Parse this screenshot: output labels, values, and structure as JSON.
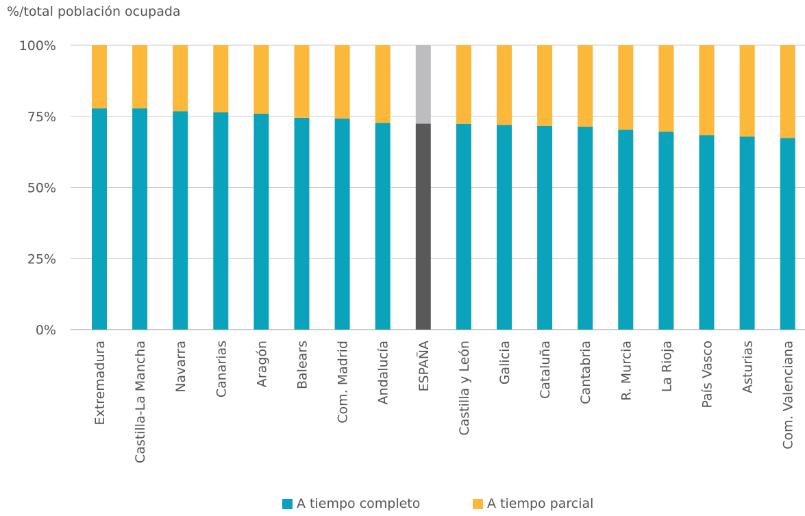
{
  "chart_data": {
    "type": "bar",
    "stacked": true,
    "ylabel": "%/total población ocupada",
    "ylim": [
      0,
      100
    ],
    "yticks": [
      "0%",
      "25%",
      "50%",
      "75%",
      "100%"
    ],
    "grid": true,
    "legend_position": "bottom",
    "categories": [
      "Extremadura",
      "Castilla-La Mancha",
      "Navarra",
      "Canarias",
      "Aragón",
      "Balears",
      "Com. Madrid",
      "Andalucía",
      "ESPAÑA",
      "Castilla y León",
      "Galicia",
      "Cataluña",
      "Cantabria",
      "R. Murcia",
      "La Rioja",
      "País Vasco",
      "Asturias",
      "Com. Valenciana"
    ],
    "highlight_category": "ESPAÑA",
    "series": [
      {
        "name": "A tiempo completo",
        "color": "#0aa3bb",
        "highlight_color": "#595959",
        "values": [
          77.8,
          77.8,
          76.8,
          76.4,
          75.9,
          74.5,
          74.2,
          72.7,
          72.4,
          72.3,
          72.0,
          71.6,
          71.4,
          70.3,
          69.6,
          68.4,
          67.9,
          67.4
        ]
      },
      {
        "name": "A tiempo parcial",
        "color": "#fbb83a",
        "highlight_color": "#bdbdc0",
        "values": [
          22.2,
          22.2,
          23.2,
          23.6,
          24.1,
          25.5,
          25.8,
          27.3,
          27.6,
          27.7,
          28.0,
          28.4,
          28.6,
          29.7,
          30.4,
          31.6,
          32.1,
          32.6
        ]
      }
    ]
  }
}
